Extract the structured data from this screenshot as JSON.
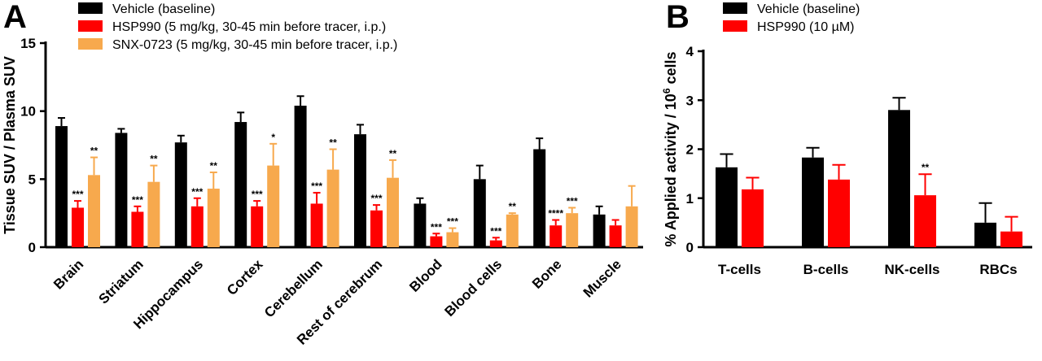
{
  "chart_data": [
    {
      "panel": "A",
      "type": "bar",
      "ylabel": "Tissue SUV / Plasma SUV",
      "ylim": [
        0,
        15
      ],
      "yticks": [
        0,
        5,
        10,
        15
      ],
      "categories": [
        "Brain",
        "Striatum",
        "Hippocampus",
        "Cortex",
        "Cerebellum",
        "Rest of cerebrum",
        "Blood",
        "Blood cells",
        "Bone",
        "Muscle"
      ],
      "series": [
        {
          "name": "Vehicle (baseline)",
          "color": "#000000",
          "values": [
            8.9,
            8.4,
            7.7,
            9.2,
            10.4,
            8.3,
            3.2,
            5.0,
            7.2,
            2.4
          ],
          "errors": [
            0.6,
            0.3,
            0.5,
            0.7,
            0.7,
            0.7,
            0.4,
            1.0,
            0.8,
            0.6
          ],
          "significance": [
            "",
            "",
            "",
            "",
            "",
            "",
            "",
            "",
            "",
            ""
          ]
        },
        {
          "name": "HSP990 (5 mg/kg, 30-45 min before tracer, i.p.)",
          "color": "#ff0000",
          "values": [
            2.9,
            2.6,
            3.0,
            3.0,
            3.2,
            2.7,
            0.8,
            0.5,
            1.6,
            1.6
          ],
          "errors": [
            0.5,
            0.4,
            0.6,
            0.4,
            0.8,
            0.4,
            0.2,
            0.2,
            0.4,
            0.4
          ],
          "significance": [
            "***",
            "***",
            "***",
            "***",
            "***",
            "***",
            "***",
            "***",
            "****",
            ""
          ]
        },
        {
          "name": "SNX-0723 (5 mg/kg, 30-45 min before tracer, i.p.)",
          "color": "#f7a94d",
          "values": [
            5.3,
            4.8,
            4.3,
            6.0,
            5.7,
            5.1,
            1.1,
            2.4,
            2.5,
            3.0
          ],
          "errors": [
            1.3,
            1.2,
            1.2,
            1.6,
            1.5,
            1.3,
            0.3,
            0.1,
            0.4,
            1.5
          ],
          "significance": [
            "**",
            "**",
            "**",
            "*",
            "**",
            "**",
            "***",
            "**",
            "***",
            ""
          ]
        }
      ]
    },
    {
      "panel": "B",
      "type": "bar",
      "ylabel_prefix": "% Applied activity / 10",
      "ylabel_sup": "6",
      "ylabel_suffix": " cells",
      "ylim": [
        0,
        4
      ],
      "yticks": [
        0,
        1,
        2,
        3,
        4
      ],
      "categories": [
        "T-cells",
        "B-cells",
        "NK-cells",
        "RBCs"
      ],
      "series": [
        {
          "name": "Vehicle (baseline)",
          "color": "#000000",
          "values": [
            1.63,
            1.83,
            2.8,
            0.5
          ],
          "errors": [
            0.27,
            0.2,
            0.25,
            0.4
          ],
          "significance": [
            "",
            "",
            "",
            ""
          ]
        },
        {
          "name": "HSP990 (10 µM)",
          "color": "#ff0000",
          "values": [
            1.18,
            1.38,
            1.06,
            0.32
          ],
          "errors": [
            0.24,
            0.3,
            0.43,
            0.3
          ],
          "significance": [
            "",
            "",
            "**",
            ""
          ]
        }
      ]
    }
  ]
}
